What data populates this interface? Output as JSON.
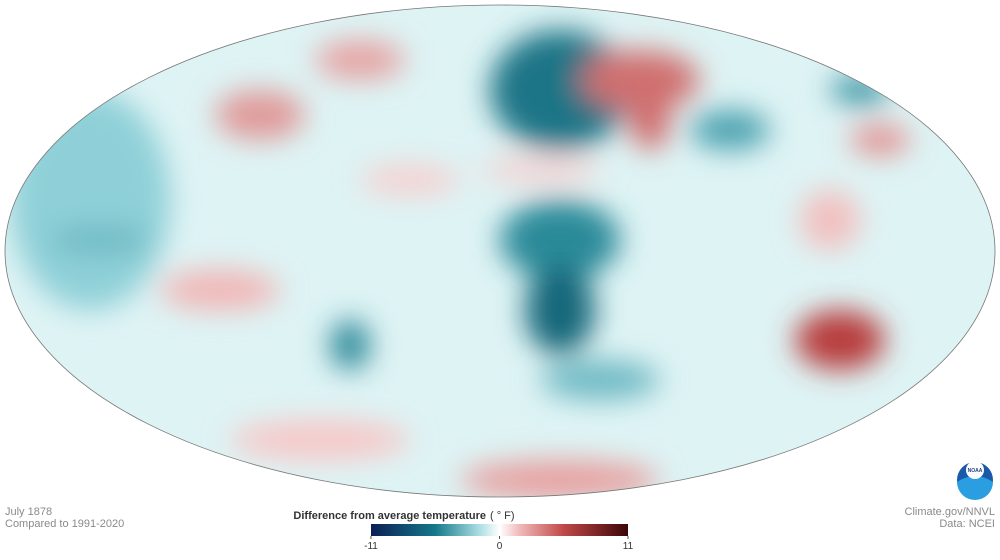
{
  "map": {
    "date": "July 1878",
    "baseline": "Compared to 1991-2020"
  },
  "legend": {
    "title": "Difference from average temperature",
    "unit": "( ° F)",
    "range": [
      -11,
      11
    ],
    "ticks": [
      -11,
      0,
      11
    ]
  },
  "credits": {
    "source": "Climate.gov/NNVL",
    "data": "Data: NCEI"
  },
  "logo": "NOAA"
}
